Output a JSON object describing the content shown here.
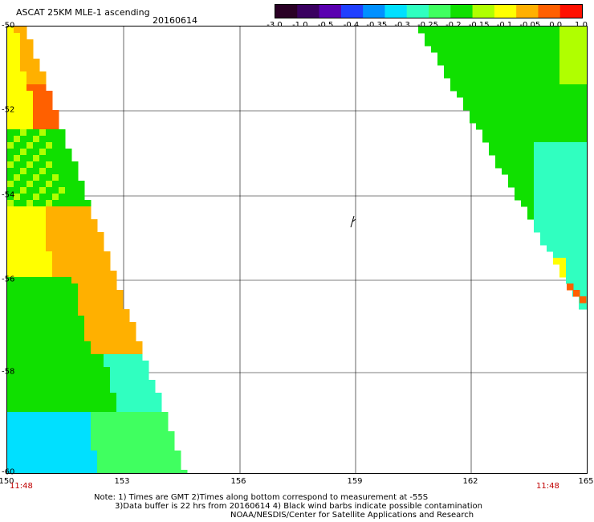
{
  "title": "ASCAT 25KM MLE-1 ascending",
  "date": "20160614",
  "colorbar": {
    "labels": [
      "-3.0",
      "-1.0",
      "-0.5",
      "-0.4",
      "-0.35",
      "-0.3",
      "-0.25",
      "-0.2",
      "-0.15",
      "-0.1",
      "-0.05",
      "0.0",
      "1.0"
    ],
    "colors": [
      "#2a0025",
      "#3a0060",
      "#5a00b0",
      "#2040ff",
      "#0090ff",
      "#00e0ff",
      "#30ffc0",
      "#40ff60",
      "#10e000",
      "#b0ff00",
      "#ffff00",
      "#ffb000",
      "#ff6000",
      "#ff1000"
    ]
  },
  "axes": {
    "lat_labels": [
      "-50",
      "-52",
      "-54",
      "-56",
      "-58",
      "-60"
    ],
    "lon_labels": [
      "150",
      "153",
      "156",
      "159",
      "162",
      "165"
    ],
    "time_left": "11:48",
    "time_right": "11:48"
  },
  "map_data": {
    "lon_range": [
      150,
      165
    ],
    "lat_range": [
      -50,
      -60
    ],
    "swaths": [
      {
        "name": "left",
        "edge_start_lon": 150.5,
        "edge_end_lon": 154.5,
        "edge_lat": [
          -50,
          -60
        ]
      },
      {
        "name": "right",
        "edge_start_lon": 160.7,
        "edge_end_lon": 165,
        "edge_lat": [
          -50,
          -56.6
        ]
      }
    ],
    "wind_barb_lon": 158.9,
    "wind_barb_lat": -54.6
  },
  "notes": {
    "line1": "Note: 1) Times are GMT 2)Times along bottom correspond to measurement at -55S",
    "line2": "3)Data buffer is 22 hrs from 20160614 4) Black wind barbs indicate possible contamination",
    "line3": "NOAA/NESDIS/Center for Satellite Applications and Research"
  }
}
